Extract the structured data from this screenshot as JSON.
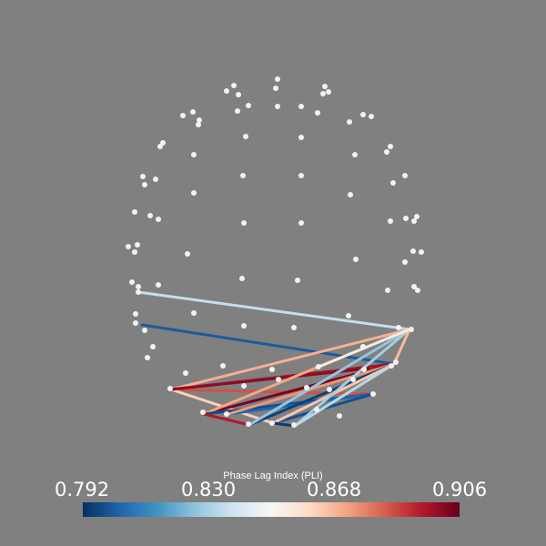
{
  "colorbar": {
    "title": "Phase Lag Index (PLI)",
    "ticks": [
      "0.792",
      "0.830",
      "0.868",
      "0.906"
    ],
    "colormap": "RdBu_r",
    "colors": [
      "#053061",
      "#2166ac",
      "#4393c3",
      "#92c5de",
      "#d1e5f0",
      "#f7f7f7",
      "#fddbc7",
      "#f4a582",
      "#d6604d",
      "#b2182b",
      "#67001f"
    ]
  },
  "background": "#808080"
}
